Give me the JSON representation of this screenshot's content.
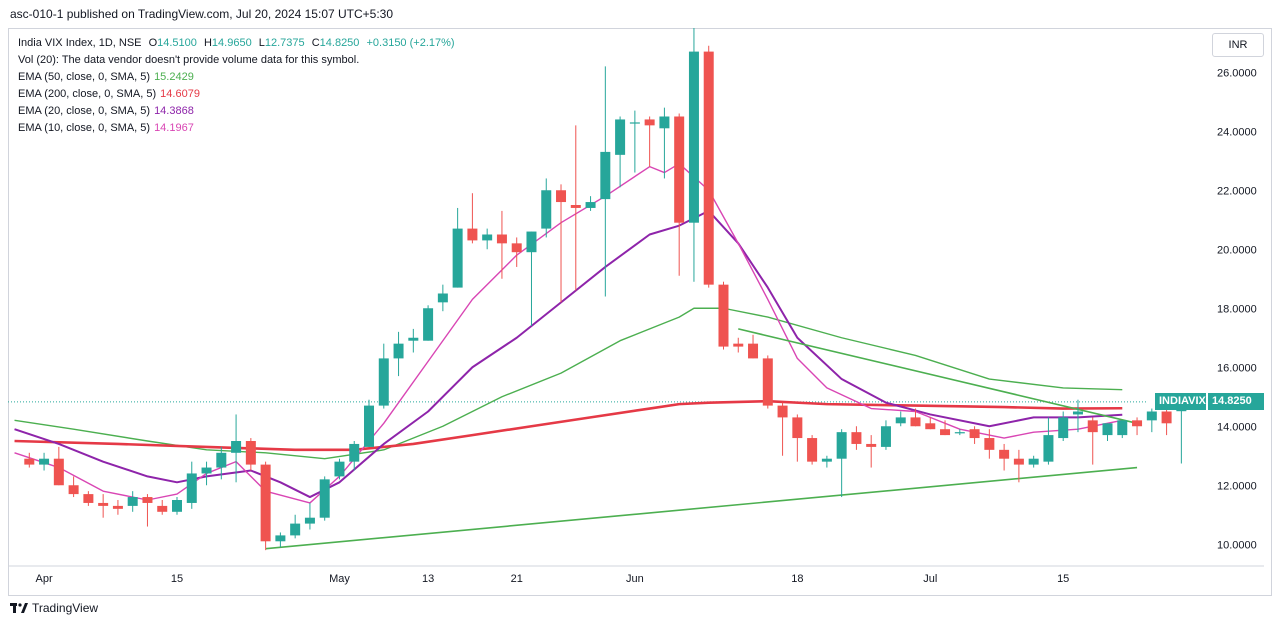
{
  "header": {
    "text": "asc-010-1 published on TradingView.com, Jul 20, 2024 15:07 UTC+5:30"
  },
  "legend": {
    "symbol_line": "India VIX Index, 1D, NSE",
    "ohlc": [
      {
        "label": "O",
        "value": "14.5100"
      },
      {
        "label": "H",
        "value": "14.9650"
      },
      {
        "label": "L",
        "value": "12.7375"
      },
      {
        "label": "C",
        "value": "14.8250"
      }
    ],
    "change": "+0.3150 (+2.17%)",
    "volume_note": "Vol (20): The data vendor doesn't provide volume data for this symbol.",
    "indicators": [
      {
        "label": "EMA (50, close, 0, SMA, 5)",
        "value": "15.2429",
        "color": "#4caf50"
      },
      {
        "label": "EMA (200, close, 0, SMA, 5)",
        "value": "14.6079",
        "color": "#e53946"
      },
      {
        "label": "EMA (20, close, 0, SMA, 5)",
        "value": "14.3868",
        "color": "#8e24aa"
      },
      {
        "label": "EMA (10, close, 0, SMA, 5)",
        "value": "14.1967",
        "color": "#d946b4"
      }
    ]
  },
  "currency": "INR",
  "price_tag": {
    "symbol": "INDIAVIX",
    "value": "14.8250"
  },
  "footer": {
    "brand": "TradingView"
  },
  "colors": {
    "up": "#26a69a",
    "down": "#ef5350",
    "trend": "#4caf50"
  },
  "chart_data": {
    "type": "candlestick",
    "yaxis": {
      "min": 9.5,
      "max": 27.5,
      "ticks": [
        "10.0000",
        "12.0000",
        "14.0000",
        "16.0000",
        "18.0000",
        "20.0000",
        "22.0000",
        "24.0000",
        "26.0000"
      ]
    },
    "xaxis": {
      "ticks": [
        {
          "label": "Apr",
          "index": 1
        },
        {
          "label": "15",
          "index": 10
        },
        {
          "label": "May",
          "index": 21
        },
        {
          "label": "13",
          "index": 27
        },
        {
          "label": "21",
          "index": 33
        },
        {
          "label": "Jun",
          "index": 41
        },
        {
          "label": "18",
          "index": 52
        },
        {
          "label": "Jul",
          "index": 61
        },
        {
          "label": "15",
          "index": 70
        }
      ]
    },
    "candles": [
      {
        "o": 12.9,
        "h": 13.1,
        "l": 12.6,
        "c": 12.7
      },
      {
        "o": 12.7,
        "h": 13.1,
        "l": 12.5,
        "c": 12.9
      },
      {
        "o": 12.9,
        "h": 13.3,
        "l": 12.0,
        "c": 12.0
      },
      {
        "o": 12.0,
        "h": 12.3,
        "l": 11.6,
        "c": 11.7
      },
      {
        "o": 11.7,
        "h": 11.8,
        "l": 11.3,
        "c": 11.4
      },
      {
        "o": 11.4,
        "h": 11.7,
        "l": 10.9,
        "c": 11.3
      },
      {
        "o": 11.3,
        "h": 11.5,
        "l": 11.0,
        "c": 11.2
      },
      {
        "o": 11.3,
        "h": 11.8,
        "l": 11.1,
        "c": 11.6
      },
      {
        "o": 11.6,
        "h": 11.7,
        "l": 10.6,
        "c": 11.4
      },
      {
        "o": 11.3,
        "h": 11.5,
        "l": 11.0,
        "c": 11.1
      },
      {
        "o": 11.1,
        "h": 11.6,
        "l": 11.0,
        "c": 11.5
      },
      {
        "o": 11.4,
        "h": 12.8,
        "l": 11.2,
        "c": 12.4
      },
      {
        "o": 12.4,
        "h": 12.8,
        "l": 12.0,
        "c": 12.6
      },
      {
        "o": 12.6,
        "h": 13.3,
        "l": 12.2,
        "c": 13.1
      },
      {
        "o": 13.1,
        "h": 14.4,
        "l": 12.1,
        "c": 13.5
      },
      {
        "o": 13.5,
        "h": 13.6,
        "l": 12.5,
        "c": 12.7
      },
      {
        "o": 12.7,
        "h": 12.8,
        "l": 9.8,
        "c": 10.1
      },
      {
        "o": 10.1,
        "h": 10.4,
        "l": 9.9,
        "c": 10.3
      },
      {
        "o": 10.3,
        "h": 11.0,
        "l": 10.2,
        "c": 10.7
      },
      {
        "o": 10.7,
        "h": 11.4,
        "l": 10.5,
        "c": 10.9
      },
      {
        "o": 10.9,
        "h": 12.3,
        "l": 10.8,
        "c": 12.2
      },
      {
        "o": 12.3,
        "h": 12.9,
        "l": 12.2,
        "c": 12.8
      },
      {
        "o": 12.8,
        "h": 13.5,
        "l": 12.5,
        "c": 13.4
      },
      {
        "o": 13.3,
        "h": 14.9,
        "l": 13.3,
        "c": 14.7
      },
      {
        "o": 14.7,
        "h": 16.8,
        "l": 14.6,
        "c": 16.3
      },
      {
        "o": 16.3,
        "h": 17.2,
        "l": 15.7,
        "c": 16.8
      },
      {
        "o": 16.9,
        "h": 17.3,
        "l": 16.5,
        "c": 17.0
      },
      {
        "o": 16.9,
        "h": 18.1,
        "l": 16.9,
        "c": 18.0
      },
      {
        "o": 18.2,
        "h": 18.8,
        "l": 17.9,
        "c": 18.5
      },
      {
        "o": 18.7,
        "h": 21.4,
        "l": 18.7,
        "c": 20.7
      },
      {
        "o": 20.7,
        "h": 21.9,
        "l": 20.2,
        "c": 20.3
      },
      {
        "o": 20.3,
        "h": 20.7,
        "l": 20.0,
        "c": 20.5
      },
      {
        "o": 20.5,
        "h": 21.3,
        "l": 19.0,
        "c": 20.2
      },
      {
        "o": 20.2,
        "h": 20.4,
        "l": 19.4,
        "c": 19.9
      },
      {
        "o": 19.9,
        "h": 20.6,
        "l": 17.4,
        "c": 20.6
      },
      {
        "o": 20.7,
        "h": 22.4,
        "l": 20.4,
        "c": 22.0
      },
      {
        "o": 22.0,
        "h": 22.2,
        "l": 18.2,
        "c": 21.6
      },
      {
        "o": 21.5,
        "h": 24.2,
        "l": 18.6,
        "c": 21.4
      },
      {
        "o": 21.4,
        "h": 21.8,
        "l": 21.3,
        "c": 21.6
      },
      {
        "o": 21.7,
        "h": 26.2,
        "l": 18.4,
        "c": 23.3
      },
      {
        "o": 23.2,
        "h": 24.5,
        "l": 22.1,
        "c": 24.4
      },
      {
        "o": 24.3,
        "h": 24.7,
        "l": 22.6,
        "c": 24.3
      },
      {
        "o": 24.4,
        "h": 24.5,
        "l": 22.8,
        "c": 24.2
      },
      {
        "o": 24.1,
        "h": 24.8,
        "l": 22.4,
        "c": 24.5
      },
      {
        "o": 24.5,
        "h": 24.6,
        "l": 19.1,
        "c": 20.9
      },
      {
        "o": 20.9,
        "h": 27.5,
        "l": 18.9,
        "c": 26.7
      },
      {
        "o": 26.7,
        "h": 26.9,
        "l": 18.7,
        "c": 18.8
      },
      {
        "o": 18.8,
        "h": 18.9,
        "l": 16.6,
        "c": 16.7
      },
      {
        "o": 16.8,
        "h": 17.0,
        "l": 16.5,
        "c": 16.7
      },
      {
        "o": 16.8,
        "h": 17.1,
        "l": 16.3,
        "c": 16.3
      },
      {
        "o": 16.3,
        "h": 16.4,
        "l": 14.6,
        "c": 14.7
      },
      {
        "o": 14.7,
        "h": 14.8,
        "l": 13.0,
        "c": 14.3
      },
      {
        "o": 14.3,
        "h": 14.4,
        "l": 12.8,
        "c": 13.6
      },
      {
        "o": 13.6,
        "h": 13.7,
        "l": 12.7,
        "c": 12.8
      },
      {
        "o": 12.8,
        "h": 13.0,
        "l": 12.6,
        "c": 12.9
      },
      {
        "o": 12.9,
        "h": 13.9,
        "l": 11.6,
        "c": 13.8
      },
      {
        "o": 13.8,
        "h": 14.0,
        "l": 13.2,
        "c": 13.4
      },
      {
        "o": 13.4,
        "h": 13.7,
        "l": 12.6,
        "c": 13.3
      },
      {
        "o": 13.3,
        "h": 14.2,
        "l": 13.2,
        "c": 14.0
      },
      {
        "o": 14.1,
        "h": 14.5,
        "l": 14.0,
        "c": 14.3
      },
      {
        "o": 14.3,
        "h": 14.6,
        "l": 14.0,
        "c": 14.0
      },
      {
        "o": 14.1,
        "h": 14.3,
        "l": 13.9,
        "c": 13.9
      },
      {
        "o": 13.9,
        "h": 14.2,
        "l": 13.7,
        "c": 13.7
      },
      {
        "o": 13.8,
        "h": 13.9,
        "l": 13.7,
        "c": 13.8
      },
      {
        "o": 13.9,
        "h": 14.0,
        "l": 13.4,
        "c": 13.6
      },
      {
        "o": 13.6,
        "h": 13.9,
        "l": 12.9,
        "c": 13.2
      },
      {
        "o": 13.2,
        "h": 13.4,
        "l": 12.5,
        "c": 12.9
      },
      {
        "o": 12.9,
        "h": 13.2,
        "l": 12.1,
        "c": 12.7
      },
      {
        "o": 12.7,
        "h": 13.0,
        "l": 12.6,
        "c": 12.9
      },
      {
        "o": 12.8,
        "h": 14.3,
        "l": 12.7,
        "c": 13.7
      },
      {
        "o": 13.6,
        "h": 14.5,
        "l": 13.5,
        "c": 14.3
      },
      {
        "o": 14.4,
        "h": 14.9,
        "l": 13.8,
        "c": 14.5
      },
      {
        "o": 14.2,
        "h": 14.3,
        "l": 12.7,
        "c": 13.8
      },
      {
        "o": 13.7,
        "h": 14.1,
        "l": 13.5,
        "c": 14.1
      },
      {
        "o": 13.7,
        "h": 14.2,
        "l": 13.6,
        "c": 14.2
      },
      {
        "o": 14.2,
        "h": 14.3,
        "l": 13.7,
        "c": 14.0
      },
      {
        "o": 14.2,
        "h": 14.6,
        "l": 13.8,
        "c": 14.5
      },
      {
        "o": 14.5,
        "h": 14.6,
        "l": 13.7,
        "c": 14.1
      },
      {
        "o": 14.51,
        "h": 14.965,
        "l": 12.7375,
        "c": 14.825
      }
    ],
    "series": [
      {
        "name": "EMA (50, close, 0, SMA, 5)",
        "color": "#4caf50",
        "width": 1.4,
        "points": [
          [
            -1,
            14.2
          ],
          [
            3,
            13.9
          ],
          [
            8,
            13.5
          ],
          [
            12,
            13.2
          ],
          [
            16,
            13.1
          ],
          [
            20,
            12.9
          ],
          [
            24,
            13.2
          ],
          [
            28,
            14.0
          ],
          [
            32,
            15.0
          ],
          [
            36,
            15.8
          ],
          [
            40,
            16.9
          ],
          [
            43,
            17.5
          ],
          [
            44,
            17.7
          ],
          [
            45,
            18.0
          ],
          [
            47,
            18.0
          ],
          [
            50,
            17.7
          ],
          [
            55,
            17.0
          ],
          [
            60,
            16.4
          ],
          [
            65,
            15.6
          ],
          [
            70,
            15.3
          ],
          [
            74,
            15.24
          ]
        ]
      },
      {
        "name": "EMA (200, close, 0, SMA, 5)",
        "color": "#e53946",
        "width": 2.6,
        "points": [
          [
            -1,
            13.5
          ],
          [
            6,
            13.4
          ],
          [
            12,
            13.3
          ],
          [
            18,
            13.2
          ],
          [
            22,
            13.2
          ],
          [
            26,
            13.4
          ],
          [
            30,
            13.7
          ],
          [
            34,
            14.0
          ],
          [
            38,
            14.3
          ],
          [
            42,
            14.6
          ],
          [
            44,
            14.75
          ],
          [
            46,
            14.8
          ],
          [
            50,
            14.85
          ],
          [
            54,
            14.75
          ],
          [
            60,
            14.7
          ],
          [
            66,
            14.65
          ],
          [
            70,
            14.6
          ],
          [
            74,
            14.61
          ]
        ]
      },
      {
        "name": "EMA (20, close, 0, SMA, 5)",
        "color": "#8e24aa",
        "width": 2.0,
        "points": [
          [
            -1,
            13.9
          ],
          [
            2,
            13.4
          ],
          [
            5,
            12.8
          ],
          [
            8,
            12.3
          ],
          [
            10,
            12.1
          ],
          [
            12,
            12.3
          ],
          [
            15,
            12.5
          ],
          [
            17,
            12.1
          ],
          [
            19,
            11.6
          ],
          [
            21,
            12.1
          ],
          [
            24,
            13.4
          ],
          [
            27,
            14.5
          ],
          [
            30,
            16.0
          ],
          [
            33,
            17.0
          ],
          [
            36,
            18.2
          ],
          [
            39,
            19.4
          ],
          [
            42,
            20.5
          ],
          [
            44,
            20.8
          ],
          [
            46,
            21.3
          ],
          [
            48,
            20.2
          ],
          [
            50,
            18.7
          ],
          [
            52,
            17.0
          ],
          [
            55,
            15.6
          ],
          [
            58,
            14.8
          ],
          [
            61,
            14.4
          ],
          [
            65,
            14.0
          ],
          [
            68,
            14.3
          ],
          [
            71,
            14.3
          ],
          [
            74,
            14.39
          ]
        ]
      },
      {
        "name": "EMA (10, close, 0, SMA, 5)",
        "color": "#d946b4",
        "width": 1.4,
        "points": [
          [
            -1,
            13.1
          ],
          [
            2,
            12.6
          ],
          [
            5,
            11.8
          ],
          [
            8,
            11.5
          ],
          [
            10,
            11.7
          ],
          [
            12,
            12.4
          ],
          [
            14,
            12.8
          ],
          [
            16,
            11.8
          ],
          [
            19,
            11.4
          ],
          [
            21,
            12.3
          ],
          [
            24,
            14.1
          ],
          [
            27,
            16.2
          ],
          [
            30,
            18.3
          ],
          [
            33,
            19.8
          ],
          [
            36,
            20.9
          ],
          [
            39,
            21.8
          ],
          [
            42,
            22.8
          ],
          [
            43,
            22.6
          ],
          [
            44,
            22.9
          ],
          [
            46,
            22.0
          ],
          [
            48,
            20.2
          ],
          [
            50,
            18.3
          ],
          [
            52,
            16.3
          ],
          [
            54,
            15.3
          ],
          [
            57,
            14.6
          ],
          [
            60,
            14.5
          ],
          [
            63,
            13.9
          ],
          [
            66,
            13.6
          ],
          [
            68,
            13.8
          ],
          [
            71,
            13.9
          ],
          [
            74,
            14.2
          ]
        ]
      },
      {
        "name": "trendline-lower",
        "color": "#4caf50",
        "width": 1.6,
        "points": [
          [
            16,
            9.85
          ],
          [
            75,
            12.6
          ]
        ]
      },
      {
        "name": "trendline-upper",
        "color": "#4caf50",
        "width": 1.6,
        "points": [
          [
            48,
            17.3
          ],
          [
            75,
            14.1
          ]
        ]
      }
    ],
    "last_price": 14.825
  }
}
